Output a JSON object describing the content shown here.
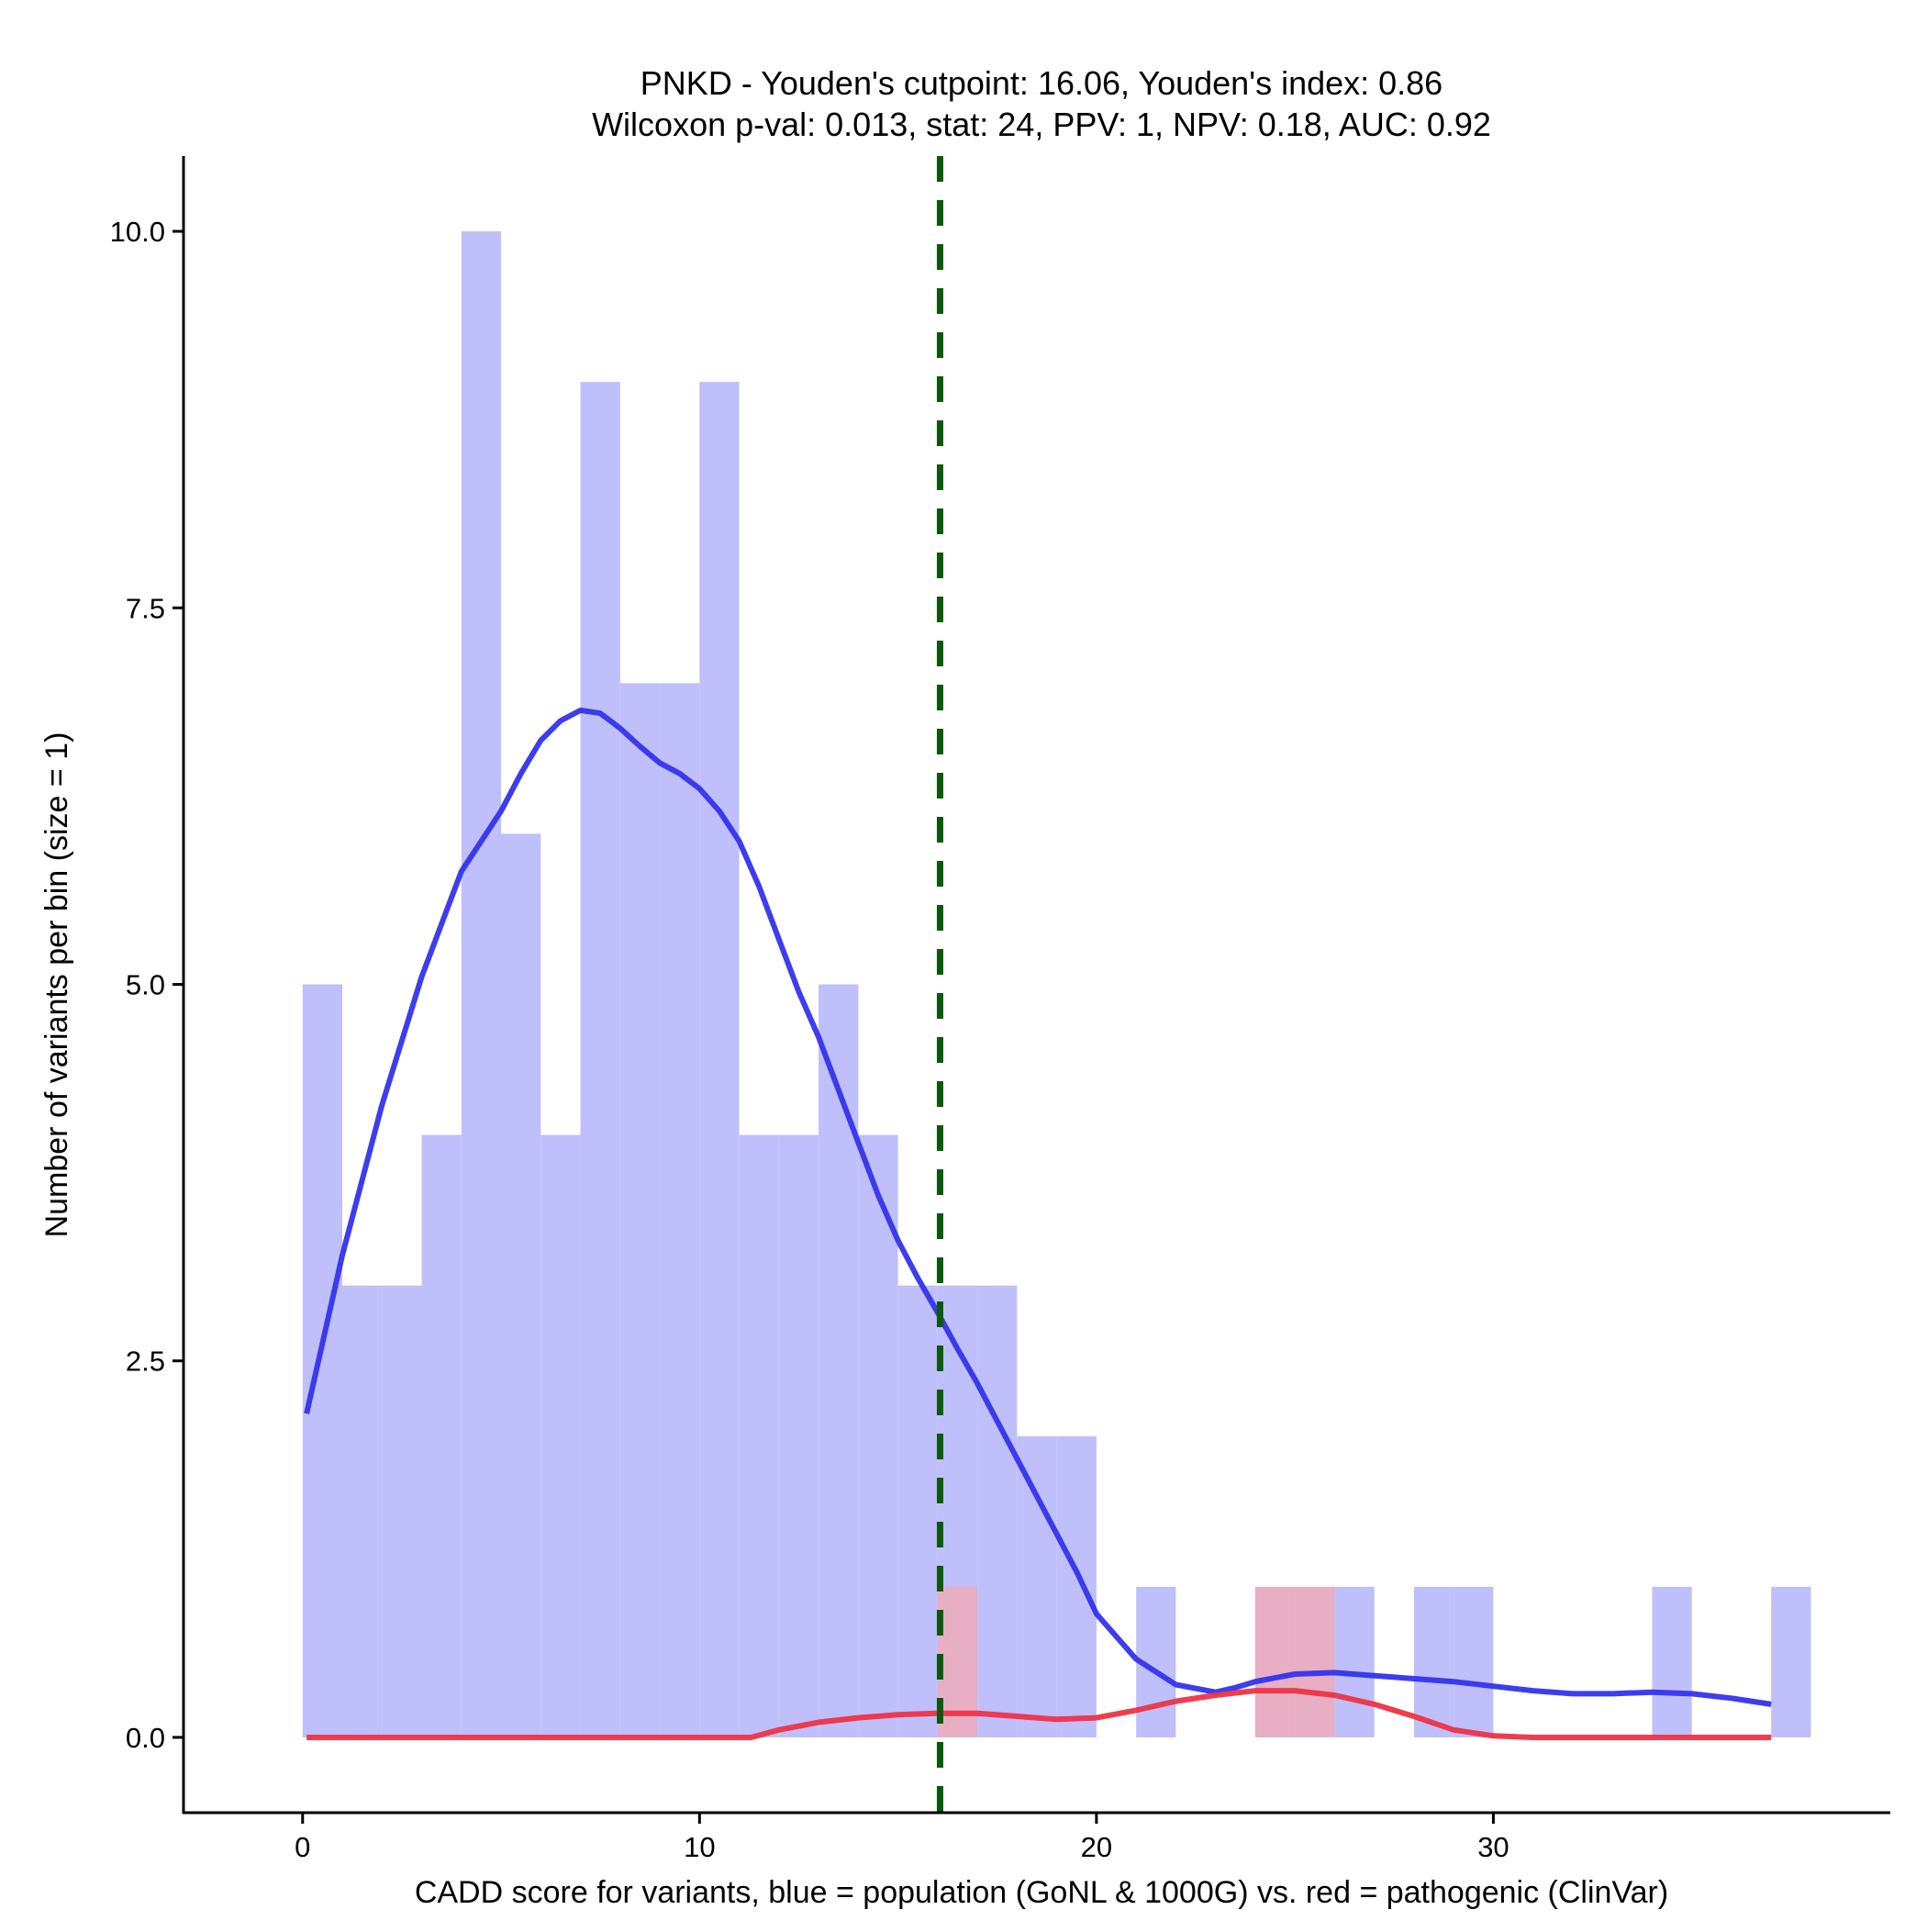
{
  "chart_data": {
    "type": "bar",
    "title_line1": "PNKD - Youden's cutpoint: 16.06, Youden's index: 0.86",
    "title_line2": "Wilcoxon p-val: 0.013, stat: 24, PPV: 1, NPV: 0.18, AUC: 0.92",
    "xlabel": "CADD score for variants, blue = population (GoNL & 1000G) vs. red = pathogenic (ClinVar)",
    "ylabel": "Number of variants per bin (size = 1)",
    "xlim": [
      -3,
      40
    ],
    "ylim": [
      -0.5,
      10.5
    ],
    "x_ticks": [
      {
        "value": 0,
        "label": "0"
      },
      {
        "value": 10,
        "label": "10"
      },
      {
        "value": 20,
        "label": "20"
      },
      {
        "value": 30,
        "label": "30"
      }
    ],
    "y_ticks": [
      {
        "value": 0,
        "label": "0.0"
      },
      {
        "value": 2.5,
        "label": "2.5"
      },
      {
        "value": 5,
        "label": "5.0"
      },
      {
        "value": 7.5,
        "label": "7.5"
      },
      {
        "value": 10,
        "label": "10.0"
      }
    ],
    "cutpoint": 16.06,
    "colors": {
      "population_bar": "#bfbffc",
      "pathogenic_bar": "#f9a7ab",
      "population_line": "#3333ee",
      "pathogenic_line": "#ee3344",
      "cutpoint_line": "#0a5a0a"
    },
    "series": [
      {
        "kind": "histogram",
        "bins": [
          {
            "x0": 0,
            "x1": 1,
            "count": 5
          },
          {
            "x0": 1,
            "x1": 2,
            "count": 3
          },
          {
            "x0": 2,
            "x1": 3,
            "count": 3
          },
          {
            "x0": 3,
            "x1": 4,
            "count": 4
          },
          {
            "x0": 4,
            "x1": 5,
            "count": 10
          },
          {
            "x0": 5,
            "x1": 6,
            "count": 6
          },
          {
            "x0": 6,
            "x1": 7,
            "count": 4
          },
          {
            "x0": 7,
            "x1": 8,
            "count": 9
          },
          {
            "x0": 8,
            "x1": 9,
            "count": 7
          },
          {
            "x0": 9,
            "x1": 10,
            "count": 7
          },
          {
            "x0": 10,
            "x1": 11,
            "count": 9
          },
          {
            "x0": 11,
            "x1": 12,
            "count": 4
          },
          {
            "x0": 12,
            "x1": 13,
            "count": 4
          },
          {
            "x0": 13,
            "x1": 14,
            "count": 5
          },
          {
            "x0": 14,
            "x1": 15,
            "count": 4
          },
          {
            "x0": 15,
            "x1": 16,
            "count": 3
          },
          {
            "x0": 16,
            "x1": 17,
            "count": 3
          },
          {
            "x0": 17,
            "x1": 18,
            "count": 3
          },
          {
            "x0": 18,
            "x1": 19,
            "count": 2
          },
          {
            "x0": 19,
            "x1": 20,
            "count": 2
          },
          {
            "x0": 21,
            "x1": 22,
            "count": 1
          },
          {
            "x0": 24,
            "x1": 25,
            "count": 1
          },
          {
            "x0": 25,
            "x1": 26,
            "count": 1
          },
          {
            "x0": 26,
            "x1": 27,
            "count": 1
          },
          {
            "x0": 28,
            "x1": 29,
            "count": 1
          },
          {
            "x0": 29,
            "x1": 30,
            "count": 1
          },
          {
            "x0": 34,
            "x1": 35,
            "count": 1
          },
          {
            "x0": 37,
            "x1": 38,
            "count": 1
          }
        ]
      },
      {
        "kind": "histogram",
        "bins": [
          {
            "x0": 16,
            "x1": 17,
            "count": 1
          },
          {
            "x0": 24,
            "x1": 25,
            "count": 1
          },
          {
            "x0": 25,
            "x1": 26,
            "count": 1
          }
        ]
      },
      {
        "kind": "density",
        "x": [
          0.1,
          1,
          2,
          3,
          4,
          4.5,
          5,
          5.5,
          6,
          6.5,
          7,
          7.5,
          8,
          8.5,
          9,
          9.5,
          10,
          10.5,
          11,
          11.5,
          12,
          12.5,
          13,
          13.5,
          14,
          14.5,
          15,
          15.5,
          16,
          16.5,
          17,
          17.5,
          18,
          18.5,
          19,
          19.5,
          20,
          21,
          22,
          23,
          23.5,
          24,
          25,
          26,
          27,
          28,
          29,
          30,
          31,
          32,
          33,
          34,
          35,
          36,
          37
        ],
        "y": [
          2.15,
          3.2,
          4.2,
          5.05,
          5.75,
          5.95,
          6.15,
          6.4,
          6.62,
          6.75,
          6.82,
          6.8,
          6.7,
          6.58,
          6.47,
          6.4,
          6.3,
          6.15,
          5.95,
          5.65,
          5.3,
          4.95,
          4.65,
          4.3,
          3.95,
          3.6,
          3.3,
          3.05,
          2.82,
          2.58,
          2.35,
          2.1,
          1.85,
          1.6,
          1.35,
          1.1,
          0.82,
          0.52,
          0.35,
          0.3,
          0.33,
          0.37,
          0.42,
          0.43,
          0.41,
          0.39,
          0.37,
          0.34,
          0.31,
          0.29,
          0.29,
          0.3,
          0.29,
          0.26,
          0.22
        ]
      },
      {
        "kind": "density",
        "x": [
          0.1,
          5,
          11.3,
          12,
          13,
          14,
          15,
          16,
          17,
          18,
          19,
          20,
          21,
          22,
          23,
          24,
          25,
          26,
          27,
          28,
          29,
          30,
          31,
          33,
          35,
          37
        ],
        "y": [
          0,
          0,
          0,
          0.05,
          0.1,
          0.13,
          0.15,
          0.16,
          0.16,
          0.14,
          0.12,
          0.13,
          0.18,
          0.24,
          0.28,
          0.31,
          0.31,
          0.28,
          0.22,
          0.14,
          0.05,
          0.01,
          0,
          0,
          0,
          0
        ]
      }
    ]
  }
}
